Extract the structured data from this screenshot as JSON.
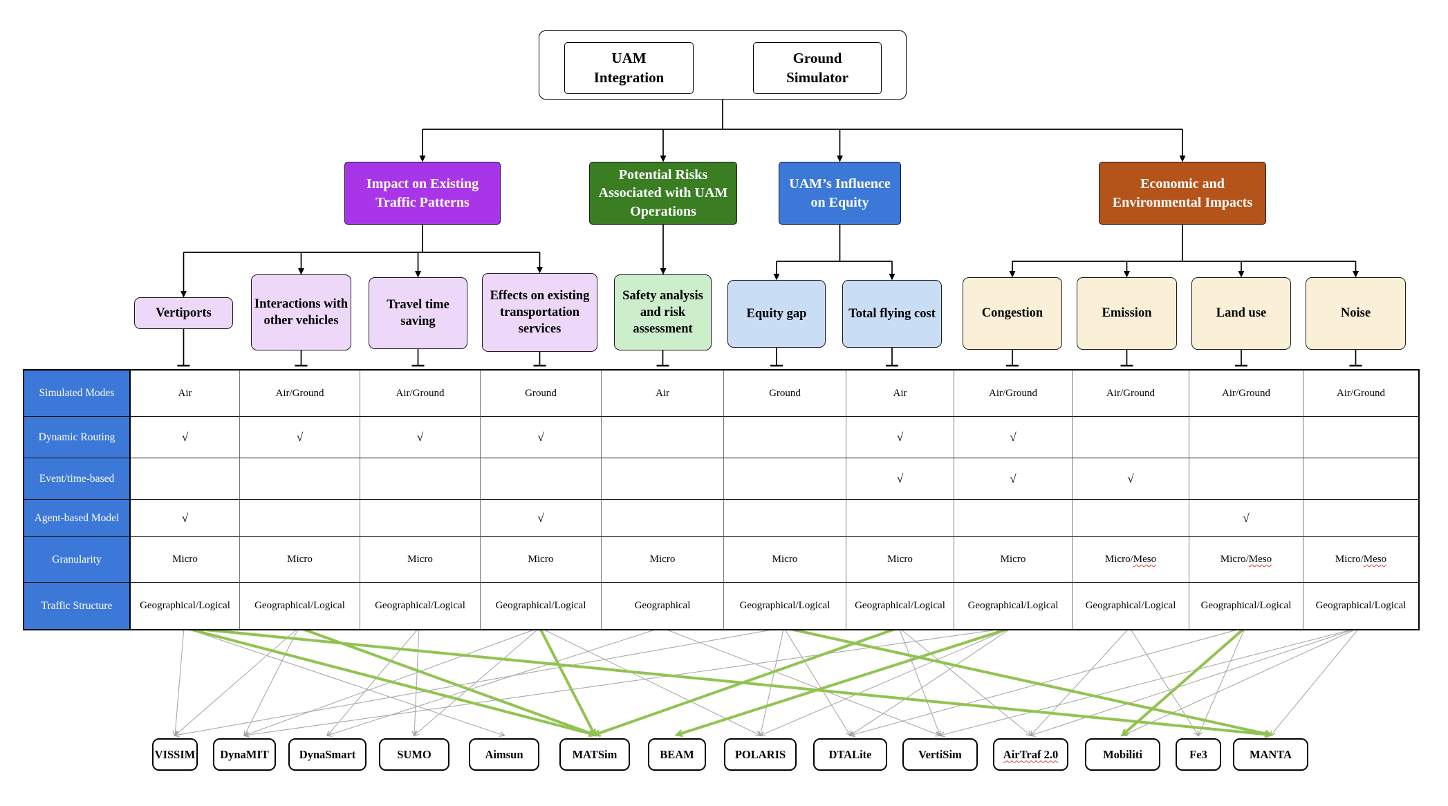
{
  "root": {
    "left_label": "UAM Integration",
    "right_label": "Ground Simulator"
  },
  "categories": [
    {
      "label": "Impact on Existing Traffic Patterns",
      "fill": "#A935E9"
    },
    {
      "label": "Potential Risks Associated with UAM Operations",
      "fill": "#3A7D23"
    },
    {
      "label": "UAM’s Influence on Equity",
      "fill": "#3B78D8"
    },
    {
      "label": "Economic and Environmental Impacts",
      "fill": "#B4541B"
    }
  ],
  "subtopics": [
    {
      "label": "Vertiports",
      "fill": "#EDD8F9",
      "category": 0
    },
    {
      "label": "Interactions with other vehicles",
      "fill": "#EDD8F9",
      "category": 0
    },
    {
      "label": "Travel time saving",
      "fill": "#EDD8F9",
      "category": 0
    },
    {
      "label": "Effects on existing transportation services",
      "fill": "#EDD8F9",
      "category": 0
    },
    {
      "label": "Safety analysis and risk assessment",
      "fill": "#CCEECB",
      "category": 1
    },
    {
      "label": "Equity gap",
      "fill": "#C9DDF5",
      "category": 2
    },
    {
      "label": "Total flying cost",
      "fill": "#C9DDF5",
      "category": 2
    },
    {
      "label": "Congestion",
      "fill": "#FAF0D8",
      "category": 3
    },
    {
      "label": "Emission",
      "fill": "#FAF0D8",
      "category": 3
    },
    {
      "label": "Land use",
      "fill": "#FAF0D8",
      "category": 3
    },
    {
      "label": "Noise",
      "fill": "#FAF0D8",
      "category": 3
    }
  ],
  "table": {
    "header_fill": "#3C78D8",
    "row_headers": [
      "Simulated Modes",
      "Dynamic Routing",
      "Event/time-based",
      "Agent-based Model",
      "Granularity",
      "Traffic Structure"
    ],
    "rows": [
      [
        "Air",
        "Air/Ground",
        "Air/Ground",
        "Ground",
        "Air",
        "Ground",
        "Air",
        "Air/Ground",
        "Air/Ground",
        "Air/Ground",
        "Air/Ground"
      ],
      [
        "√",
        "√",
        "√",
        "√",
        "",
        "",
        "√",
        "√",
        "",
        "",
        ""
      ],
      [
        "",
        "",
        "",
        "",
        "",
        "",
        "√",
        "√",
        "√",
        "",
        ""
      ],
      [
        "√",
        "",
        "",
        "√",
        "",
        "",
        "",
        "",
        "",
        "√",
        ""
      ],
      [
        "Micro",
        "Micro",
        "Micro",
        "Micro",
        "Micro",
        "Micro",
        "Micro",
        "Micro",
        "Micro/Meso",
        "Micro/Meso",
        "Micro/Meso"
      ],
      [
        "Geographical/Logical",
        "Geographical/Logical",
        "Geographical/Logical",
        "Geographical/Logical",
        "Geographical",
        "Geographical/Logical",
        "Geographical/Logical",
        "Geographical/Logical",
        "Geographical/Logical",
        "Geographical/Logical",
        "Geographical/Logical"
      ]
    ]
  },
  "simulators": [
    "VISSIM",
    "DynaMIT",
    "DynaSmart",
    "SUMO",
    "Aimsun",
    "MATSim",
    "BEAM",
    "POLARIS",
    "DTALite",
    "VertiSim",
    "AirTraf 2.0",
    "Mobiliti",
    "Fe3",
    "MANTA"
  ],
  "wavy_simulator": "AirTraf 2.0",
  "wavy_word": "Meso",
  "edges": {
    "green": [
      [
        0,
        5
      ],
      [
        1,
        5
      ],
      [
        3,
        5
      ],
      [
        6,
        5
      ],
      [
        0,
        13
      ],
      [
        5,
        13
      ],
      [
        7,
        6
      ],
      [
        9,
        11
      ]
    ],
    "gray": [
      [
        0,
        0
      ],
      [
        0,
        4
      ],
      [
        1,
        0
      ],
      [
        1,
        1
      ],
      [
        2,
        2
      ],
      [
        2,
        3
      ],
      [
        3,
        1
      ],
      [
        3,
        3
      ],
      [
        3,
        7
      ],
      [
        4,
        2
      ],
      [
        4,
        9
      ],
      [
        5,
        0
      ],
      [
        5,
        7
      ],
      [
        5,
        8
      ],
      [
        6,
        9
      ],
      [
        6,
        10
      ],
      [
        7,
        1
      ],
      [
        7,
        7
      ],
      [
        7,
        8
      ],
      [
        8,
        10
      ],
      [
        8,
        12
      ],
      [
        9,
        8
      ],
      [
        9,
        12
      ],
      [
        10,
        9
      ],
      [
        10,
        10
      ],
      [
        10,
        11
      ],
      [
        10,
        13
      ]
    ]
  },
  "colors": {
    "green_edge": "#92C352",
    "gray_edge": "#A9A9A9",
    "tree_line": "#000000"
  }
}
